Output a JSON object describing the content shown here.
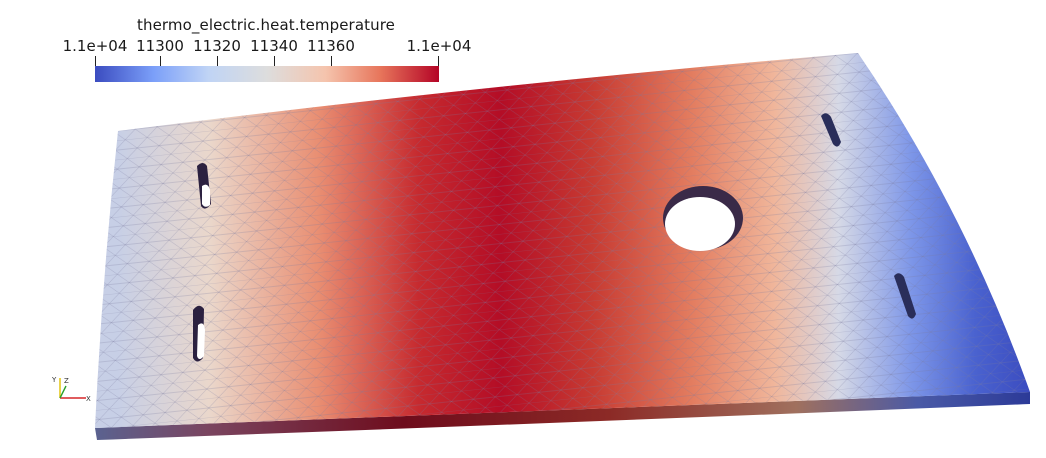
{
  "scalar_bar": {
    "title": "thermo_electric.heat.temperature",
    "ticks": [
      "1.1e+04",
      "11300",
      "11320",
      "11340",
      "11360",
      "1.1e+04"
    ],
    "colormap": [
      "#3b4cc0",
      "#7b9ff9",
      "#c0d4f5",
      "#dddddd",
      "#f5c4ad",
      "#e7755b",
      "#b40426"
    ]
  },
  "orientation_axes": {
    "x_label": "X",
    "y_label": "Y",
    "z_label": "Z",
    "x_color": "#d62728",
    "y_color": "#e0c000",
    "z_color": "#2ca02c"
  },
  "mesh": {
    "field": "temperature",
    "colormap_name": "Cool to Warm",
    "features": [
      "slot-left-upper",
      "slot-left-lower",
      "circular-hole",
      "slot-right-upper",
      "slot-right-lower"
    ]
  }
}
